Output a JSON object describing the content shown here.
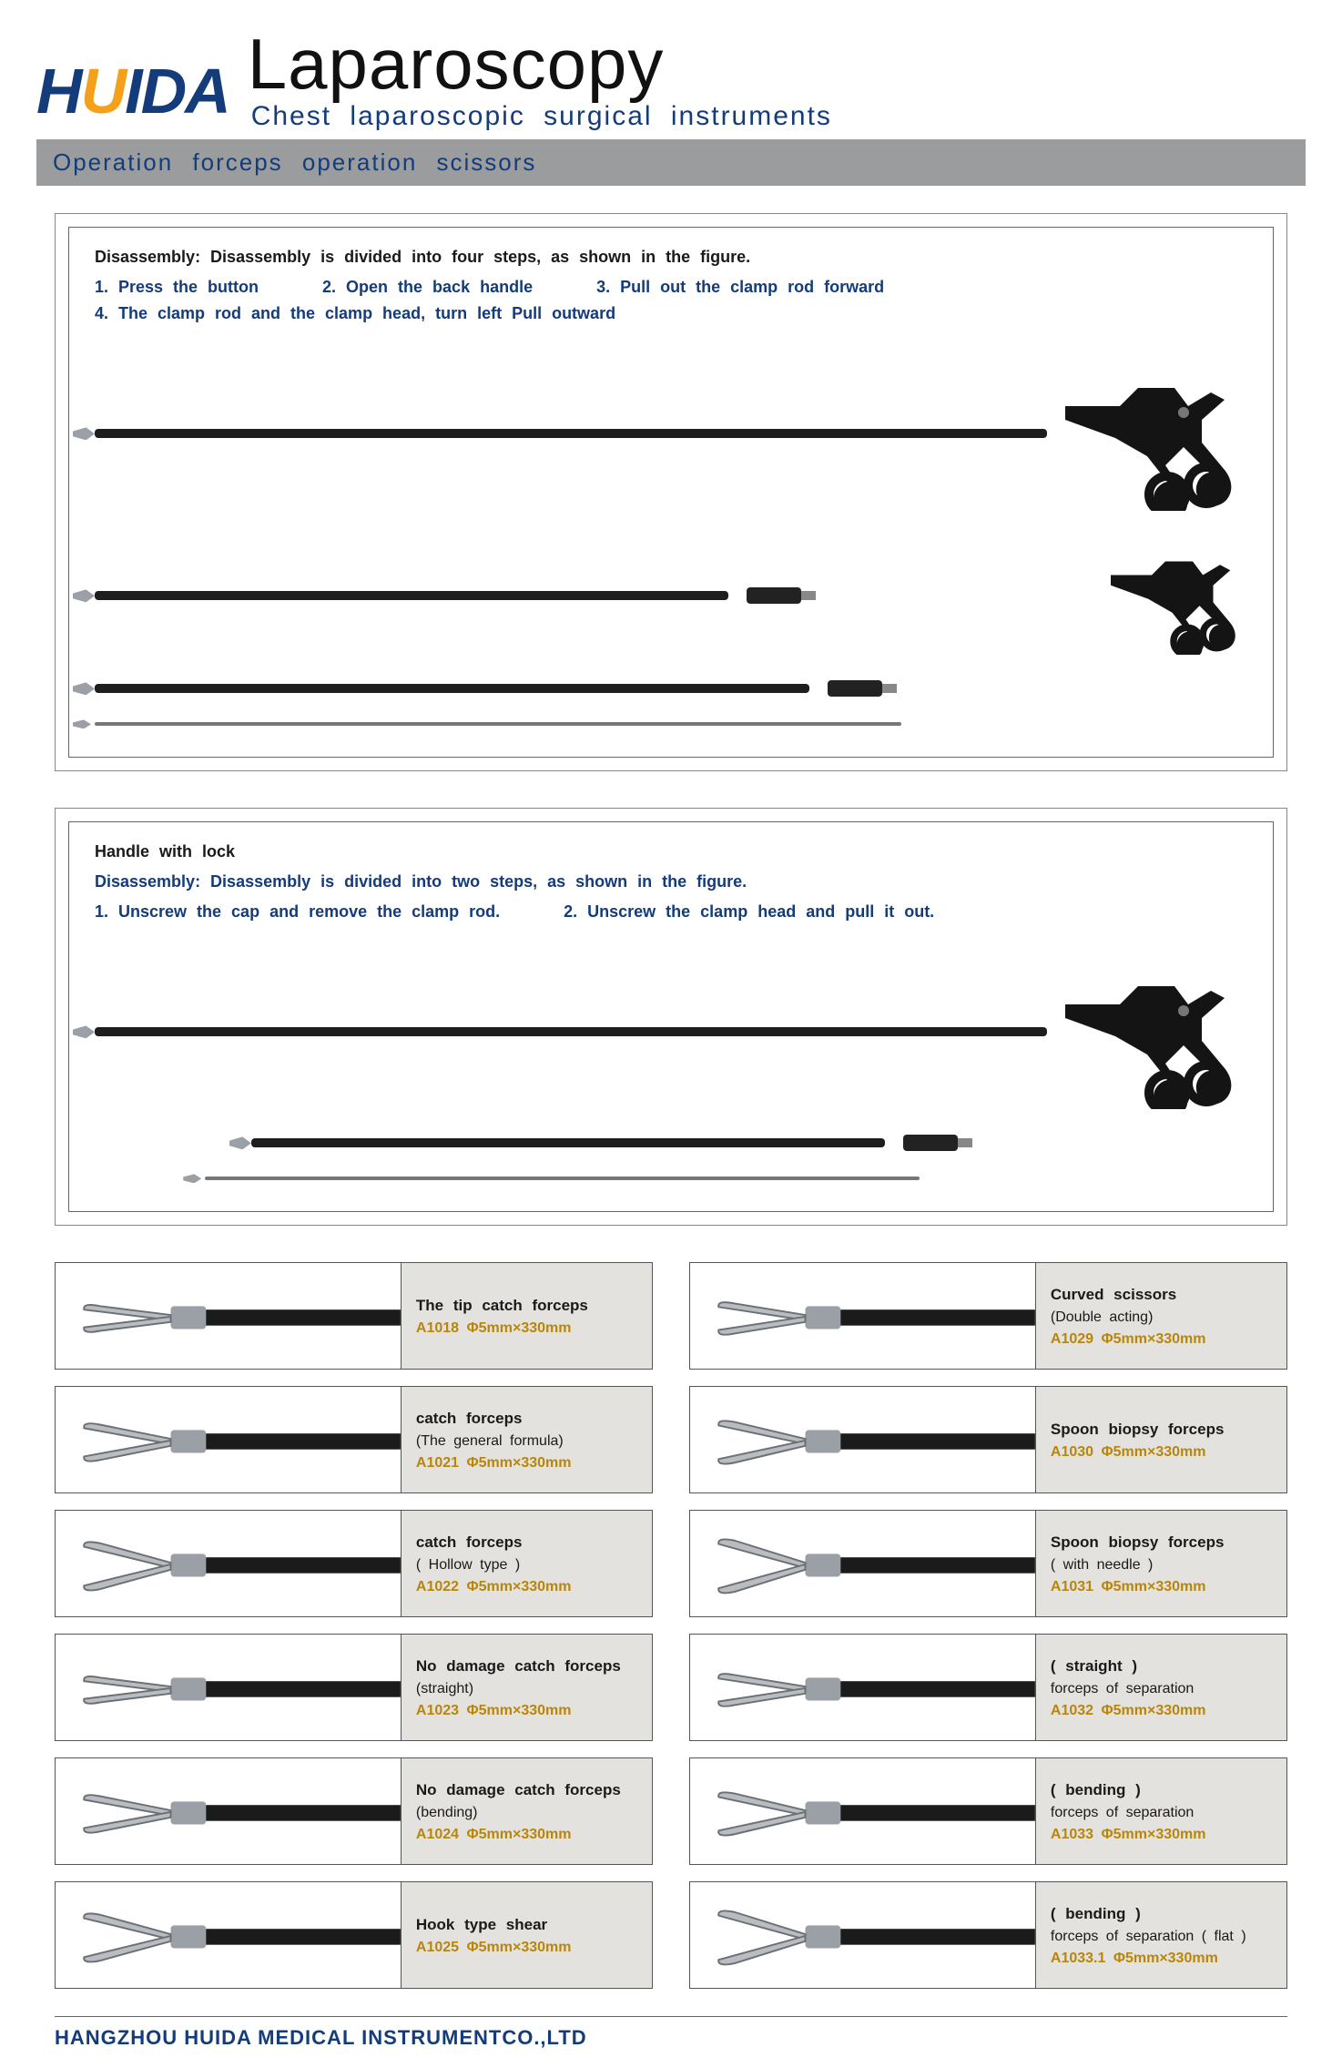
{
  "brand": {
    "h": "H",
    "u": "U",
    "i_txt": "I",
    "d": "D",
    "a": "A"
  },
  "title": "Laparoscopy",
  "subtitle": "Chest  laparoscopic  surgical  instruments",
  "section_bar": "Operation  forceps  operation  scissors",
  "panel1": {
    "lead": "Disassembly:  Disassembly  is  divided  into  four  steps,  as  shown  in  the  figure.",
    "steps": [
      "1.  Press  the  button",
      "2.  Open  the  back  handle",
      "3.  Pull  out  the  clamp  rod  forward",
      "4. The  clamp  rod  and  the  clamp  head,  turn  left    Pull  outward"
    ]
  },
  "panel2": {
    "handle_label": "Handle  with  lock",
    "lead": "Disassembly:  Disassembly  is  divided  into  two  steps,  as  shown  in  the  figure.",
    "steps": [
      "1.  Unscrew  the  cap  and  remove  the  clamp  rod.",
      "2.  Unscrew  the  clamp  head  and  pull  it  out."
    ]
  },
  "products_left": [
    {
      "name": "The  tip  catch  forceps",
      "sub": "",
      "code": "A1018  Φ5mm×330mm"
    },
    {
      "name": "catch  forceps",
      "sub": "(The  general  formula)",
      "code": "A1021  Φ5mm×330mm"
    },
    {
      "name": "catch  forceps",
      "sub": "( Hollow  type )",
      "code": "A1022  Φ5mm×330mm"
    },
    {
      "name": "No  damage  catch  forceps",
      "sub": "(straight)",
      "code": "A1023   Φ5mm×330mm"
    },
    {
      "name": "No  damage  catch  forceps",
      "sub": "(bending)",
      "code": "A1024   Φ5mm×330mm"
    },
    {
      "name": "Hook  type  shear",
      "sub": "",
      "code": "A1025  Φ5mm×330mm"
    }
  ],
  "products_right": [
    {
      "name": "Curved  scissors",
      "sub": "(Double  acting)",
      "code": "A1029  Φ5mm×330mm"
    },
    {
      "name": "Spoon  biopsy  forceps",
      "sub": "",
      "code": "A1030  Φ5mm×330mm"
    },
    {
      "name": "Spoon  biopsy  forceps",
      "sub": "( with  needle )",
      "code": "A1031   Φ5mm×330mm"
    },
    {
      "name": "( straight )",
      "sub": "forceps  of  separation",
      "code": "A1032  Φ5mm×330mm"
    },
    {
      "name": "( bending )",
      "sub": "forceps  of  separation",
      "code": "A1033  Φ5mm×330mm"
    },
    {
      "name": "( bending )",
      "sub": "forceps  of  separation ( flat )",
      "code": "A1033.1  Φ5mm×330mm"
    }
  ],
  "footer": "HANGZHOU HUIDA MEDICAL INSTRUMENTCO.,LTD",
  "colors": {
    "navy": "#143c7a",
    "orange": "#f5a01a",
    "bar_bg": "#9b9c9e",
    "info_bg": "#e3e2de",
    "code": "#b8860b",
    "border": "#555555"
  }
}
